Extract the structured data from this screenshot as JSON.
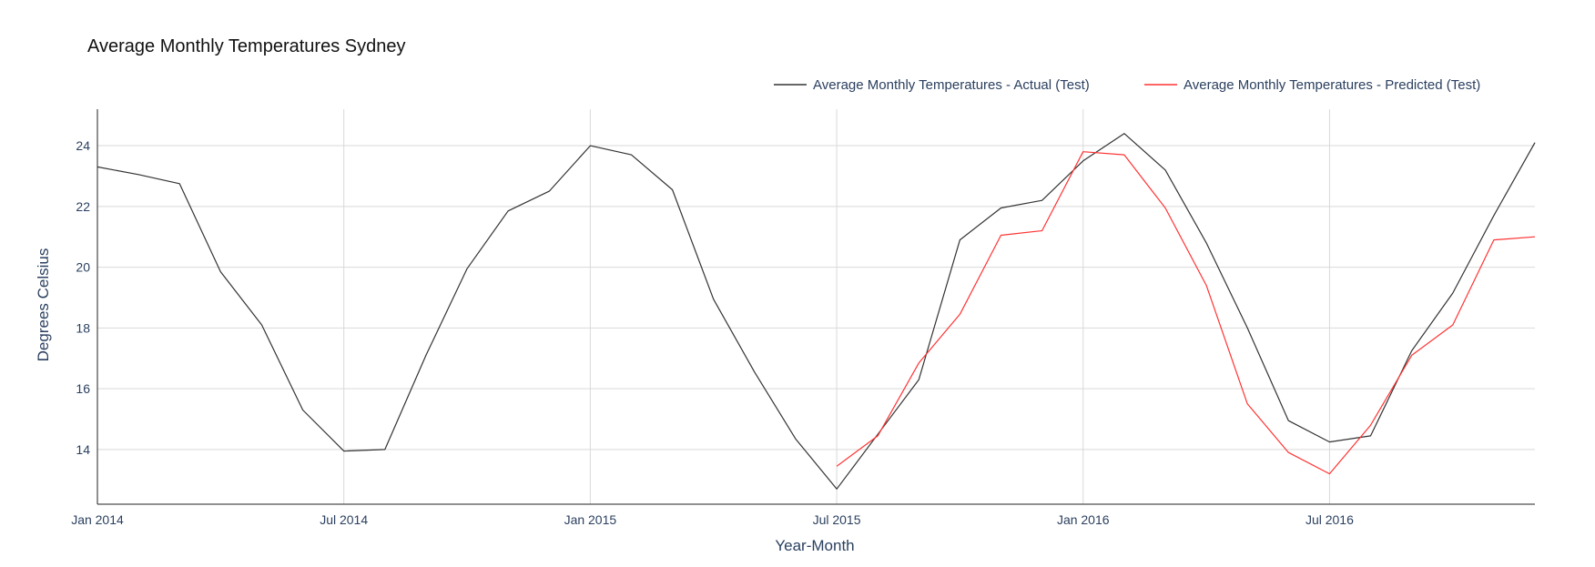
{
  "chart_data": {
    "type": "line",
    "title": "Average Monthly Temperatures Sydney",
    "xlabel": "Year-Month",
    "ylabel": "Degrees Celsius",
    "x_ticks": [
      {
        "label": "Jan 2014",
        "month_index": 0
      },
      {
        "label": "Jul 2014",
        "month_index": 6
      },
      {
        "label": "Jan 2015",
        "month_index": 12
      },
      {
        "label": "Jul 2015",
        "month_index": 18
      },
      {
        "label": "Jan 2016",
        "month_index": 24
      },
      {
        "label": "Jul 2016",
        "month_index": 30
      }
    ],
    "y_ticks": [
      14,
      16,
      18,
      20,
      22,
      24
    ],
    "ylim": [
      12.2,
      25.2
    ],
    "xlim": [
      "2014-01",
      "2016-12"
    ],
    "grid": true,
    "legend_position": "top-right",
    "series": [
      {
        "name": "Average Monthly Temperatures - Actual (Test)",
        "color": "#333333",
        "x": [
          "2014-01",
          "2014-02",
          "2014-03",
          "2014-04",
          "2014-05",
          "2014-06",
          "2014-07",
          "2014-08",
          "2014-09",
          "2014-10",
          "2014-11",
          "2014-12",
          "2015-01",
          "2015-02",
          "2015-03",
          "2015-04",
          "2015-05",
          "2015-06",
          "2015-07",
          "2015-08",
          "2015-09",
          "2015-10",
          "2015-11",
          "2015-12",
          "2016-01",
          "2016-02",
          "2016-03",
          "2016-04",
          "2016-05",
          "2016-06",
          "2016-07",
          "2016-08",
          "2016-09",
          "2016-10",
          "2016-11",
          "2016-12"
        ],
        "values": [
          23.3,
          23.05,
          22.75,
          19.85,
          18.1,
          15.3,
          13.95,
          14.0,
          17.1,
          19.95,
          21.85,
          22.5,
          24.0,
          23.7,
          22.55,
          18.95,
          16.55,
          14.35,
          12.7,
          14.5,
          16.3,
          20.9,
          21.95,
          22.2,
          23.5,
          24.4,
          23.2,
          20.8,
          18.0,
          14.95,
          14.25,
          14.45,
          17.25,
          19.15,
          21.7,
          24.1
        ]
      },
      {
        "name": "Average Monthly Temperatures - Predicted (Test)",
        "color": "#ff3333",
        "x": [
          "2015-07",
          "2015-08",
          "2015-09",
          "2015-10",
          "2015-11",
          "2015-12",
          "2016-01",
          "2016-02",
          "2016-03",
          "2016-04",
          "2016-05",
          "2016-06",
          "2016-07",
          "2016-08",
          "2016-09",
          "2016-10",
          "2016-11",
          "2016-12"
        ],
        "values": [
          13.45,
          14.45,
          16.85,
          18.45,
          21.05,
          21.2,
          23.8,
          23.7,
          21.95,
          19.4,
          15.5,
          13.9,
          13.2,
          14.8,
          17.1,
          18.1,
          20.9,
          21.0
        ]
      }
    ]
  }
}
